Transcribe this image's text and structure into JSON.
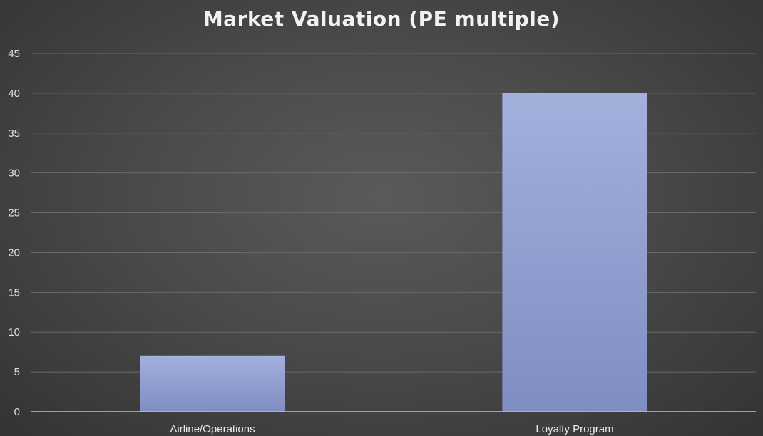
{
  "chart_data": {
    "type": "bar",
    "title": "Market Valuation (PE multiple)",
    "categories": [
      "Airline/Operations",
      "Loyalty Program"
    ],
    "values": [
      7,
      40
    ],
    "ylim": [
      0,
      45
    ],
    "yticks": [
      "0",
      "5",
      "10",
      "15",
      "20",
      "25",
      "30",
      "35",
      "40",
      "45"
    ],
    "grid": true,
    "legend": "none",
    "colors": {
      "bar_top": "#a4b0dc",
      "bar_bottom": "#7f8dc2",
      "gridline": "#6a6a6a",
      "axis": "#bfbfbf"
    }
  }
}
